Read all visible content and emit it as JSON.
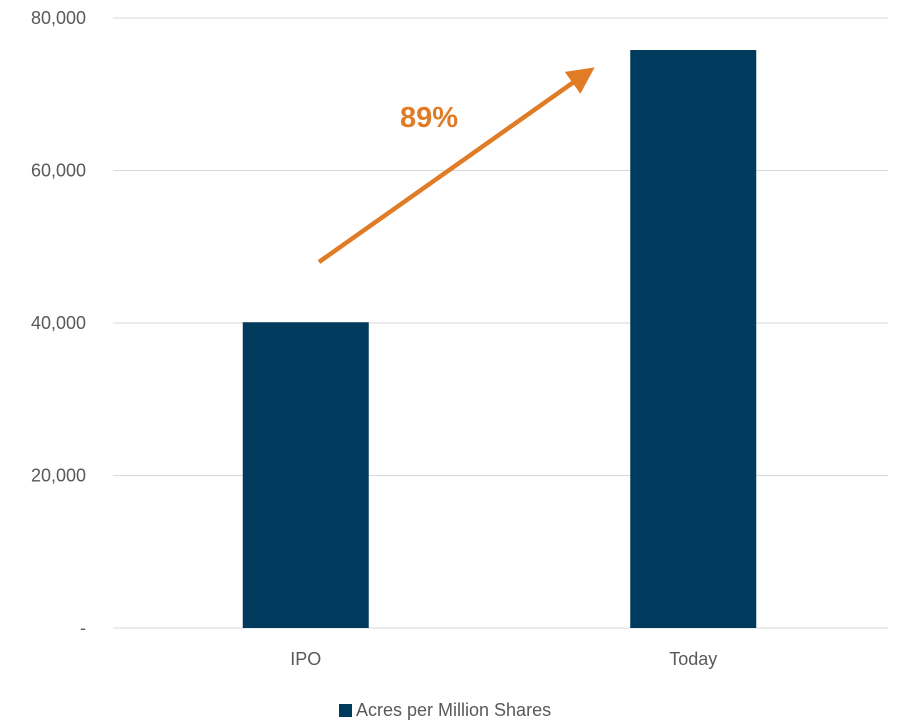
{
  "chart_data": {
    "type": "bar",
    "categories": [
      "IPO",
      "Today"
    ],
    "series": [
      {
        "name": "Acres per Million Shares",
        "values": [
          40100,
          75800
        ]
      }
    ],
    "ylim": [
      0,
      80000
    ],
    "yticks": [
      0,
      20000,
      40000,
      60000,
      80000
    ],
    "ytick_labels": [
      "-",
      "20,000",
      "40,000",
      "60,000",
      "80,000"
    ],
    "grid": true,
    "legend_position": "bottom",
    "annotation": {
      "text": "89%"
    },
    "colors": {
      "bar": "#003a5d",
      "annotation": "#e07b26",
      "grid": "#d9d9d9",
      "text": "#595959"
    }
  }
}
